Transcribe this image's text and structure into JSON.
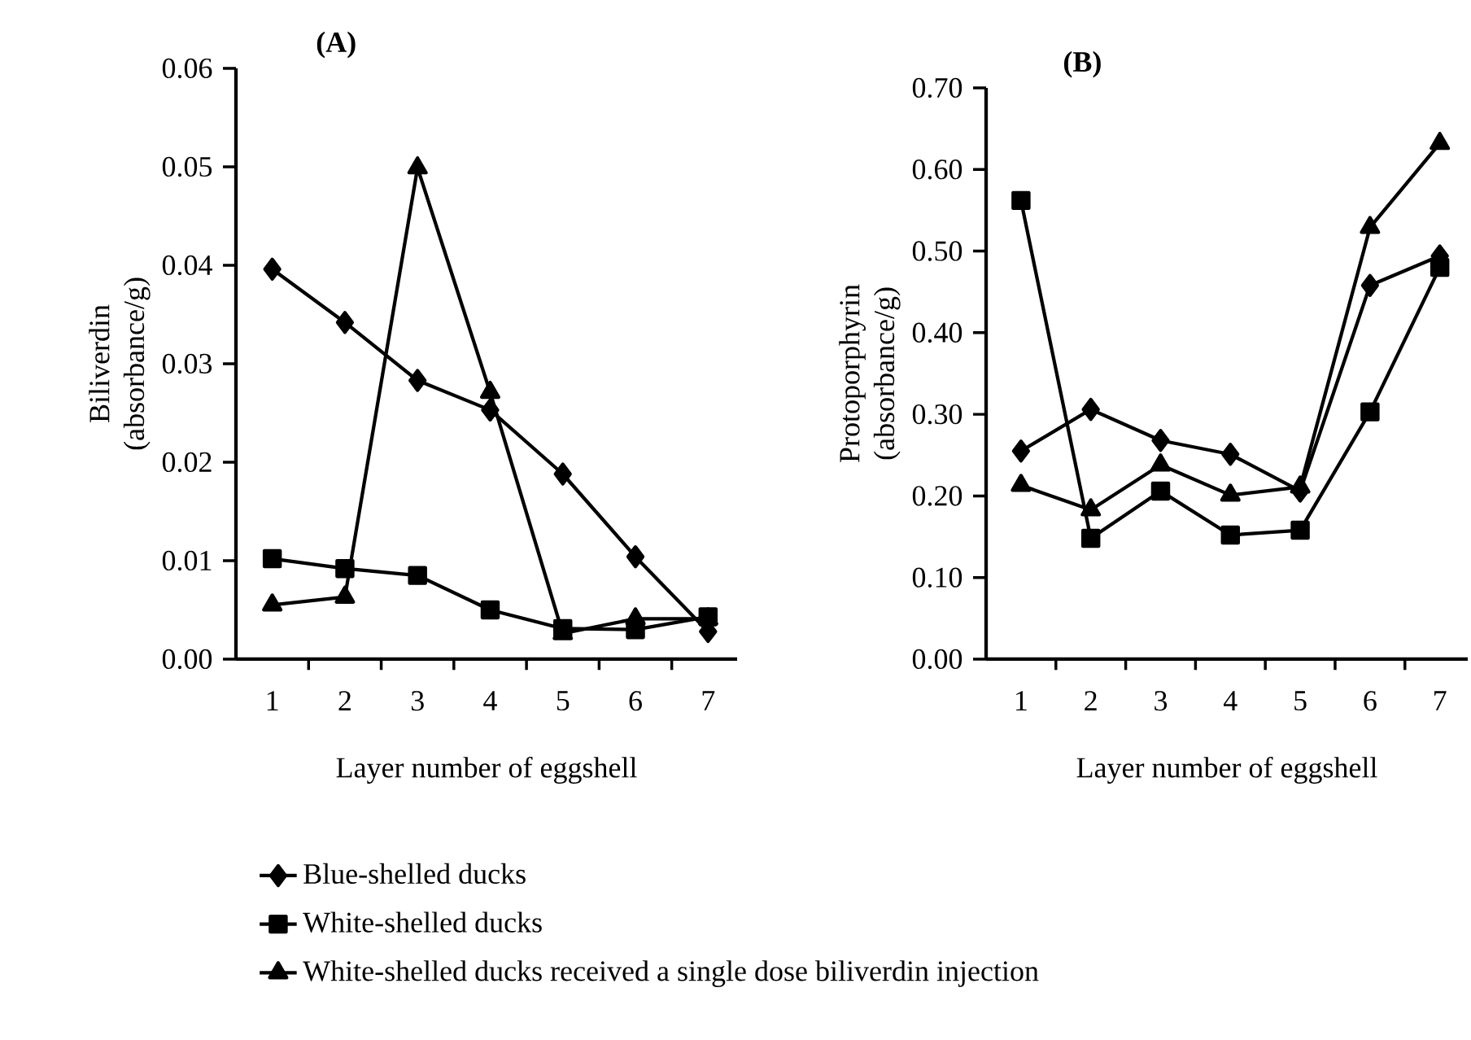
{
  "chart_data": [
    {
      "type": "line",
      "title": "(A)",
      "xlabel": "Layer number of eggshell",
      "ylabel": "Biliverdin (absorbance/g)",
      "categories": [
        "1",
        "2",
        "3",
        "4",
        "5",
        "6",
        "7"
      ],
      "ylim": [
        0,
        0.06
      ],
      "yticks": [
        {
          "value": 0,
          "label": "0.00"
        },
        {
          "value": 0.01,
          "label": "0.01"
        },
        {
          "value": 0.02,
          "label": "0.02"
        },
        {
          "value": 0.03,
          "label": "0.03"
        },
        {
          "value": 0.04,
          "label": "0.04"
        },
        {
          "value": 0.05,
          "label": "0.05"
        },
        {
          "value": 0.06,
          "label": "0.06"
        }
      ],
      "legend": "bottom",
      "line_style": "solid",
      "series": [
        {
          "name": "Blue-shelled ducks",
          "color": "#000000",
          "marker": "diamond",
          "values": [
            0.0396,
            0.0342,
            0.0283,
            0.0253,
            0.0188,
            0.0104,
            0.0028
          ]
        },
        {
          "name": "White-shelled ducks",
          "color": "#000000",
          "marker": "square",
          "values": [
            0.0102,
            0.0092,
            0.0085,
            0.005,
            0.0031,
            0.003,
            0.0043
          ]
        },
        {
          "name": "White-shelled ducks received a single dose biliverdin injection",
          "color": "#000000",
          "marker": "triangle",
          "values": [
            0.0055,
            0.0063,
            0.0499,
            0.0271,
            0.0026,
            0.0041,
            0.0041
          ]
        }
      ]
    },
    {
      "type": "line",
      "title": "(B)",
      "xlabel": "Layer number of eggshell",
      "ylabel": "Protoporphyrin (absorbance/g)",
      "categories": [
        "1",
        "2",
        "3",
        "4",
        "5",
        "6",
        "7"
      ],
      "ylim": [
        0,
        0.7
      ],
      "yticks": [
        {
          "value": 0,
          "label": "0.00"
        },
        {
          "value": 0.1,
          "label": "0.10"
        },
        {
          "value": 0.2,
          "label": "0.20"
        },
        {
          "value": 0.3,
          "label": "0.30"
        },
        {
          "value": 0.4,
          "label": "0.40"
        },
        {
          "value": 0.5,
          "label": "0.50"
        },
        {
          "value": 0.6,
          "label": "0.60"
        },
        {
          "value": 0.7,
          "label": "0.70"
        }
      ],
      "line_style": "solid",
      "series": [
        {
          "color": "#000000",
          "marker": "diamond",
          "values": [
            0.255,
            0.306,
            0.268,
            0.251,
            0.206,
            0.458,
            0.494
          ]
        },
        {
          "color": "#000000",
          "marker": "square",
          "values": [
            0.562,
            0.148,
            0.206,
            0.152,
            0.158,
            0.303,
            0.48
          ]
        },
        {
          "color": "#000000",
          "marker": "triangle",
          "values": [
            0.213,
            0.183,
            0.238,
            0.201,
            0.211,
            0.529,
            0.632
          ]
        }
      ]
    }
  ]
}
